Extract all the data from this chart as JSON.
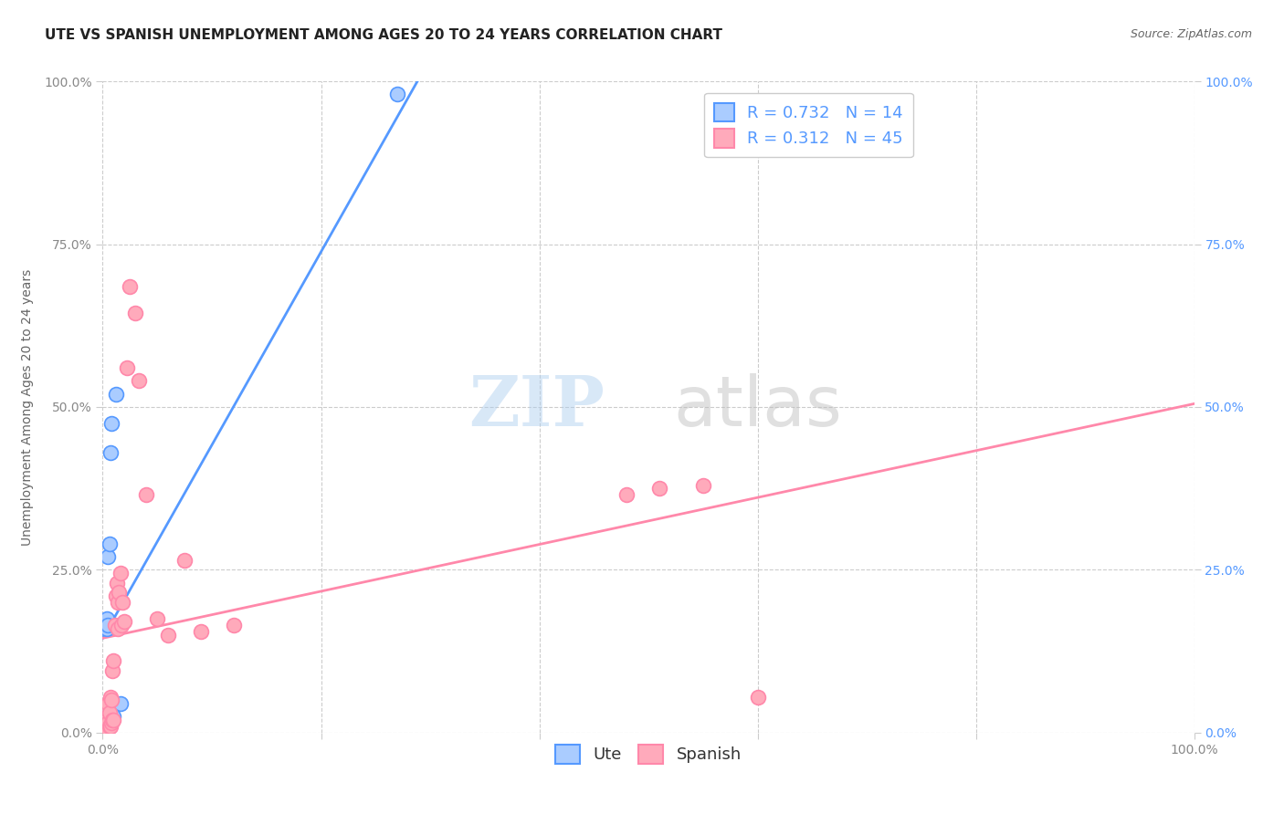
{
  "title": "UTE VS SPANISH UNEMPLOYMENT AMONG AGES 20 TO 24 YEARS CORRELATION CHART",
  "source": "Source: ZipAtlas.com",
  "ylabel": "Unemployment Among Ages 20 to 24 years",
  "xlim": [
    0.0,
    1.0
  ],
  "ylim": [
    0.0,
    1.0
  ],
  "ytick_labels": [
    "0.0%",
    "25.0%",
    "50.0%",
    "75.0%",
    "100.0%"
  ],
  "ytick_positions": [
    0.0,
    0.25,
    0.5,
    0.75,
    1.0
  ],
  "xtick_positions": [
    0.0,
    0.2,
    0.4,
    0.6,
    0.8,
    1.0
  ],
  "xtick_labels_show": [
    "0.0%",
    "",
    "",
    "",
    "",
    "100.0%"
  ],
  "watermark_zip": "ZIP",
  "watermark_atlas": "atlas",
  "legend_label_ute": "R = 0.732   N = 14",
  "legend_label_spanish": "R = 0.312   N = 45",
  "legend_label_ute_bottom": "Ute",
  "legend_label_spanish_bottom": "Spanish",
  "ute_color": "#aaccff",
  "spanish_color": "#ffaabb",
  "ute_line_color": "#5599ff",
  "spanish_line_color": "#ff88aa",
  "tick_color_left": "#888888",
  "tick_color_right": "#5599ff",
  "ute_line_x": [
    0.0,
    0.295
  ],
  "ute_line_y": [
    0.145,
    1.02
  ],
  "spanish_line_x": [
    0.0,
    1.0
  ],
  "spanish_line_y": [
    0.145,
    0.505
  ],
  "ute_scatter_x": [
    0.002,
    0.003,
    0.004,
    0.004,
    0.005,
    0.005,
    0.006,
    0.007,
    0.007,
    0.008,
    0.01,
    0.012,
    0.016,
    0.27
  ],
  "ute_scatter_y": [
    0.005,
    0.005,
    0.16,
    0.175,
    0.165,
    0.27,
    0.29,
    0.03,
    0.43,
    0.475,
    0.025,
    0.52,
    0.045,
    0.98
  ],
  "spanish_scatter_x": [
    0.001,
    0.002,
    0.002,
    0.003,
    0.003,
    0.003,
    0.004,
    0.004,
    0.005,
    0.005,
    0.005,
    0.006,
    0.006,
    0.007,
    0.007,
    0.008,
    0.008,
    0.009,
    0.009,
    0.01,
    0.01,
    0.011,
    0.012,
    0.013,
    0.014,
    0.014,
    0.015,
    0.016,
    0.017,
    0.018,
    0.02,
    0.022,
    0.025,
    0.03,
    0.033,
    0.04,
    0.05,
    0.06,
    0.075,
    0.09,
    0.12,
    0.48,
    0.51,
    0.55,
    0.6
  ],
  "spanish_scatter_y": [
    0.005,
    0.005,
    0.01,
    0.005,
    0.01,
    0.02,
    0.01,
    0.02,
    0.005,
    0.015,
    0.045,
    0.01,
    0.03,
    0.01,
    0.055,
    0.015,
    0.05,
    0.02,
    0.095,
    0.02,
    0.11,
    0.165,
    0.21,
    0.23,
    0.16,
    0.2,
    0.215,
    0.245,
    0.165,
    0.2,
    0.17,
    0.56,
    0.685,
    0.645,
    0.54,
    0.365,
    0.175,
    0.15,
    0.265,
    0.155,
    0.165,
    0.365,
    0.375,
    0.38,
    0.055
  ],
  "title_fontsize": 11,
  "axis_label_fontsize": 10,
  "tick_fontsize": 10,
  "legend_fontsize": 13,
  "watermark_zip_fontsize": 55,
  "watermark_atlas_fontsize": 55,
  "background_color": "#ffffff",
  "grid_color": "#cccccc"
}
